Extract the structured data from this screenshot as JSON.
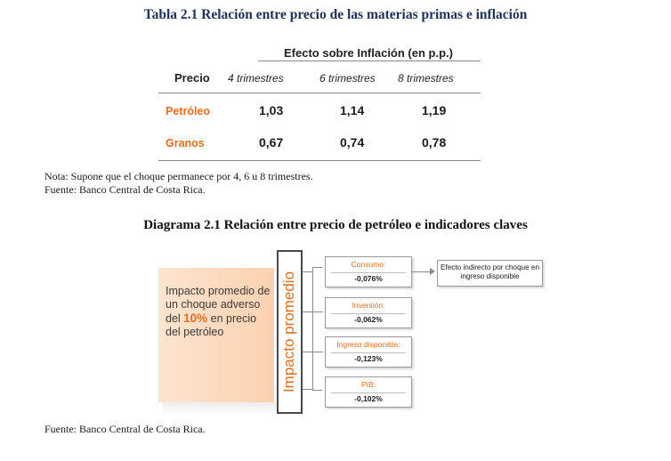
{
  "table": {
    "title": "Tabla 2.1 Relación entre precio de las materias primas e inflación",
    "group_header": "Efecto sobre Inflación (en p.p.)",
    "row_header": "Precio",
    "columns": [
      "4 trimestres",
      "6 trimestres",
      "8 trimestres"
    ],
    "rows": [
      {
        "label": "Petróleo",
        "values": [
          "1,03",
          "1,14",
          "1,19"
        ]
      },
      {
        "label": "Granos",
        "values": [
          "0,67",
          "0,74",
          "0,78"
        ]
      }
    ],
    "note": "Nota: Supone que el choque permanece por 4, 6 u 8 trimestres.",
    "source": "Fuente: Banco Central de Costa Rica."
  },
  "diagram": {
    "title": "Diagrama 2.1 Relación entre precio de petróleo e indicadores claves",
    "left_text_1": "Impacto promedio de un choque adverso del ",
    "left_text_pct": "10%",
    "left_text_2": " en precio del petróleo",
    "vertical_label": "Impacto promedio",
    "indicators": [
      {
        "name": "Consumo:",
        "value": "-0,076%"
      },
      {
        "name": "Inversión:",
        "value": "-0,062%"
      },
      {
        "name": "Ingreso disponible:",
        "value": "-0,123%"
      },
      {
        "name": "PIB:",
        "value": "-0,102%"
      }
    ],
    "effect_note": "Efecto indirecto por choque en ingreso disponible",
    "source": "Fuente: Banco Central de Costa Rica."
  },
  "colors": {
    "accent_orange": "#e36e1d",
    "title_navy": "#1e3159",
    "left_box_fill": "#fbd9bc"
  }
}
